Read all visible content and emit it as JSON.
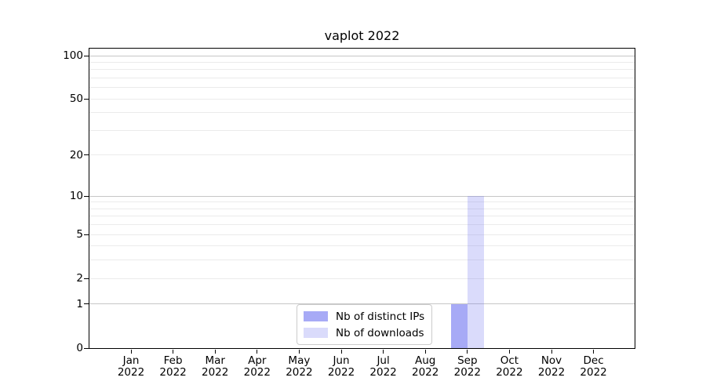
{
  "chart_data": {
    "type": "bar",
    "title": "vaplot 2022",
    "categories": [
      "Jan 2022",
      "Feb 2022",
      "Mar 2022",
      "Apr 2022",
      "May 2022",
      "Jun 2022",
      "Jul 2022",
      "Aug 2022",
      "Sep 2022",
      "Oct 2022",
      "Nov 2022",
      "Dec 2022"
    ],
    "series": [
      {
        "name": "Nb of distinct IPs",
        "color": "#6c71f0",
        "alpha": 0.6,
        "values": [
          0,
          0,
          0,
          0,
          0,
          0,
          0,
          0,
          1,
          0,
          0,
          0
        ]
      },
      {
        "name": "Nb of downloads",
        "color": "#6c71f0",
        "alpha": 0.25,
        "values": [
          0,
          0,
          0,
          0,
          0,
          0,
          0,
          0,
          10,
          0,
          0,
          0
        ]
      }
    ],
    "yscale": "log1p",
    "ylim": [
      0,
      112
    ],
    "y_ticks": [
      0,
      1,
      2,
      5,
      10,
      20,
      50,
      100
    ],
    "y_major_gridlines": [
      1,
      10,
      100
    ],
    "y_minor_gridlines": [
      2,
      3,
      4,
      5,
      6,
      7,
      8,
      9,
      20,
      30,
      40,
      50,
      60,
      70,
      80,
      90
    ],
    "grid": true,
    "legend_position": "lower center",
    "colors": {
      "grid_major": "#c6c6c6",
      "grid_minor": "#ebebeb",
      "axis": "#000000",
      "text": "#000000",
      "background": "#ffffff"
    }
  }
}
